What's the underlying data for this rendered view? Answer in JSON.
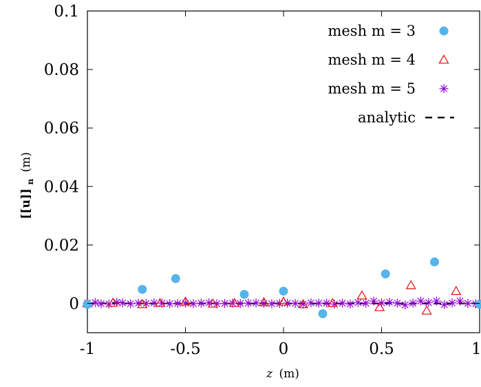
{
  "chart_data": {
    "type": "scatter",
    "xlabel_var": "z",
    "xlabel_unit": "(m)",
    "ylabel_main": "[[u]]",
    "ylabel_sub": "n",
    "ylabel_unit": "(m)",
    "xlim": [
      -1,
      1
    ],
    "ylim": [
      -0.01,
      0.1
    ],
    "xticks": [
      -1,
      -0.5,
      0,
      0.5,
      1
    ],
    "yticks": [
      0,
      0.02,
      0.04,
      0.06,
      0.08,
      0.1
    ],
    "xtick_labels": [
      "-1",
      "-0.5",
      "0",
      "0.5",
      "1"
    ],
    "ytick_labels": [
      "0",
      "0.02",
      "0.04",
      "0.06",
      "0.08",
      "0.1"
    ],
    "legend_position": "top-right",
    "series": [
      {
        "name": "mesh m = 3",
        "marker": "circle",
        "color": "#56b4e9",
        "x": [
          -1.0,
          -0.72,
          -0.55,
          -0.2,
          0.0,
          0.2,
          0.52,
          0.77,
          1.0
        ],
        "y": [
          -0.0003,
          0.0048,
          0.0085,
          0.0031,
          0.0042,
          -0.0035,
          0.0101,
          0.0142,
          -0.0003
        ]
      },
      {
        "name": "mesh m = 4",
        "marker": "triangle",
        "color": "#e41a1c",
        "x": [
          -1.0,
          -0.87,
          -0.72,
          -0.63,
          -0.5,
          -0.36,
          -0.25,
          -0.1,
          0.0,
          0.1,
          0.25,
          0.4,
          0.49,
          0.65,
          0.73,
          0.88,
          1.0
        ],
        "y": [
          0.0,
          0.0002,
          -0.0003,
          0.0001,
          0.0006,
          -0.0001,
          0.0001,
          0.0004,
          0.0006,
          -0.0003,
          0.0001,
          0.0027,
          -0.0013,
          0.0062,
          -0.0025,
          0.0042,
          0.0
        ]
      },
      {
        "name": "mesh m = 5",
        "marker": "star",
        "color": "#9400d3",
        "x": [
          -1.0,
          -0.96,
          -0.93,
          -0.89,
          -0.85,
          -0.82,
          -0.78,
          -0.74,
          -0.7,
          -0.66,
          -0.62,
          -0.58,
          -0.54,
          -0.5,
          -0.46,
          -0.42,
          -0.38,
          -0.34,
          -0.3,
          -0.26,
          -0.22,
          -0.18,
          -0.14,
          -0.1,
          -0.06,
          -0.02,
          0.02,
          0.06,
          0.1,
          0.14,
          0.18,
          0.22,
          0.26,
          0.3,
          0.34,
          0.38,
          0.42,
          0.46,
          0.5,
          0.54,
          0.58,
          0.62,
          0.66,
          0.7,
          0.74,
          0.78,
          0.82,
          0.86,
          0.9,
          0.94,
          0.98
        ],
        "y": [
          0.0002,
          0.0003,
          -0.0001,
          -0.0002,
          0.0004,
          0.0002,
          -0.0001,
          0.0001,
          0.0,
          0.0002,
          0.0001,
          -0.0001,
          0.0,
          0.0001,
          -0.0001,
          0.0001,
          0.0002,
          -0.0001,
          0.0,
          0.0001,
          0.0,
          0.0001,
          0.0002,
          0.0,
          -0.0001,
          0.0,
          0.0001,
          0.0,
          -0.0002,
          0.0002,
          0.0001,
          0.0001,
          -0.0002,
          0.0001,
          -0.0002,
          0.0003,
          0.0001,
          0.0008,
          0.0002,
          0.0004,
          0.0001,
          -0.0005,
          0.0001,
          0.0008,
          0.0003,
          0.0008,
          -0.0004,
          0.0002,
          0.0008,
          0.0,
          -0.0001
        ]
      },
      {
        "name": "analytic",
        "marker": "dashed-line",
        "color": "#000000",
        "x": [
          -1,
          1
        ],
        "y": [
          0,
          0
        ]
      }
    ]
  }
}
